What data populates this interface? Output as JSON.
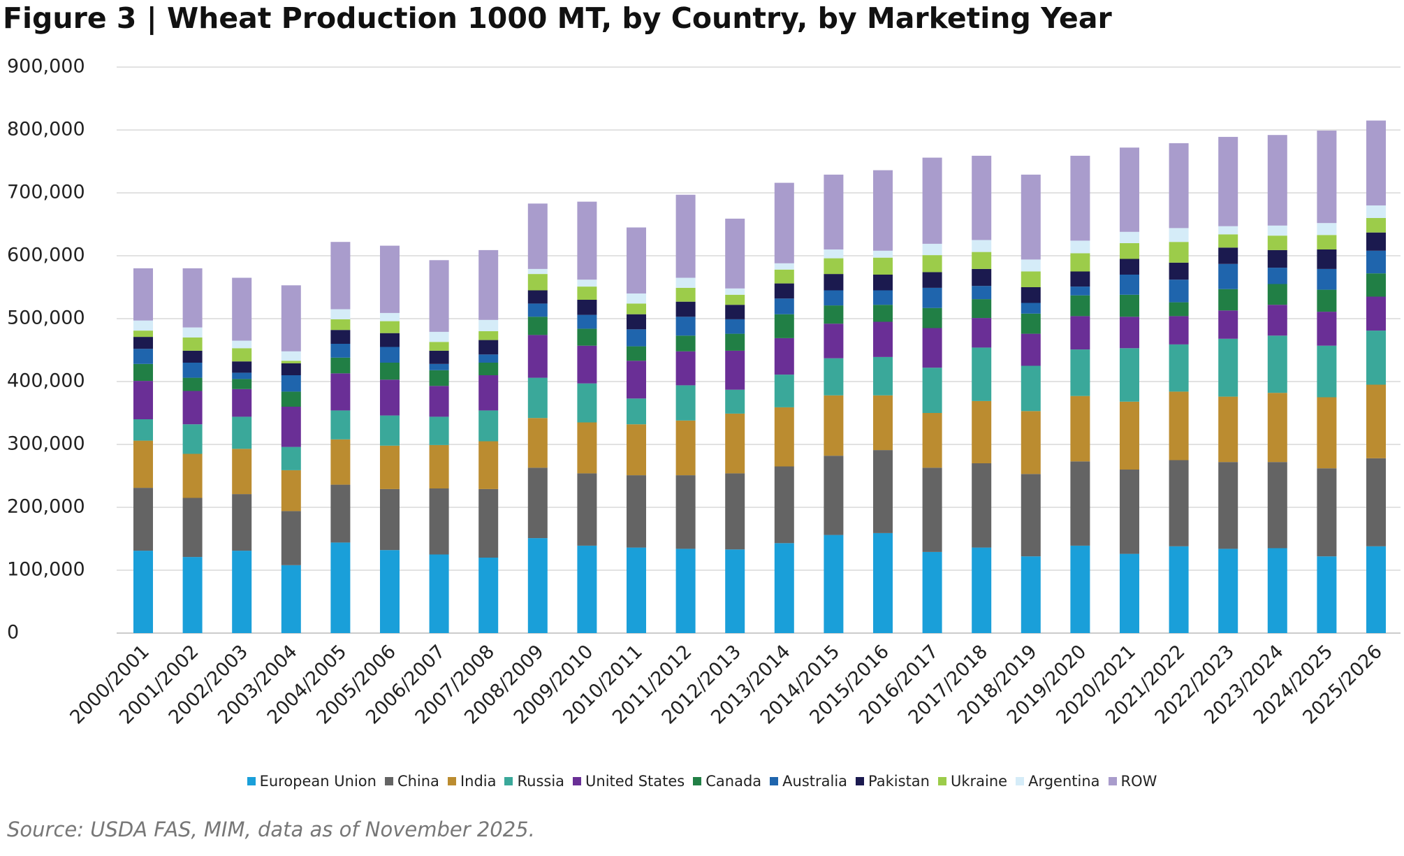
{
  "chart_data": {
    "type": "stacked_bar",
    "title": "Figure 3 | Wheat Production 1000 MT, by Country, by Marketing Year",
    "source": "Source: USDA FAS, MIM, data as of November 2025.",
    "categories": [
      "2000/2001",
      "2001/2002",
      "2002/2003",
      "2003/2004",
      "2004/2005",
      "2005/2006",
      "2006/2007",
      "2007/2008",
      "2008/2009",
      "2009/2010",
      "2010/2011",
      "2011/2012",
      "2012/2013",
      "2013/2014",
      "2014/2015",
      "2015/2016",
      "2016/2017",
      "2017/2018",
      "2018/2019",
      "2019/2020",
      "2020/2021",
      "2021/2022",
      "2022/2023",
      "2023/2024",
      "2024/2025",
      "2025/2026"
    ],
    "ylim": [
      0,
      900000
    ],
    "yticks": [
      0,
      {
        "value": 100000,
        "label": "100,000"
      },
      {
        "value": 200000,
        "label": "200,000"
      },
      {
        "value": 300000,
        "label": "300,000"
      },
      {
        "value": 400000,
        "label": "400,000"
      },
      {
        "value": 500000,
        "label": "500,000"
      },
      {
        "value": 600000,
        "label": "600,000"
      },
      {
        "value": 700000,
        "label": "700,000"
      },
      {
        "value": 800000,
        "label": "800,000"
      },
      {
        "value": 900000,
        "label": "900,000"
      }
    ],
    "grid": true,
    "legend": "bottom",
    "series": [
      {
        "name": "European Union",
        "color": "#1a9fd9",
        "values": [
          131000,
          121000,
          131000,
          108000,
          144000,
          132000,
          125000,
          120000,
          151000,
          139000,
          136000,
          134000,
          133000,
          143000,
          156000,
          159000,
          129000,
          136000,
          122000,
          139000,
          126000,
          138000,
          134000,
          135000,
          122000,
          138000
        ]
      },
      {
        "name": "China",
        "color": "#646464",
        "values": [
          100000,
          94000,
          90000,
          86000,
          92000,
          97000,
          105000,
          109000,
          112000,
          115000,
          115000,
          117000,
          121000,
          122000,
          126000,
          132000,
          134000,
          134000,
          131000,
          134000,
          134000,
          137000,
          138000,
          137000,
          140000,
          140000
        ]
      },
      {
        "name": "India",
        "color": "#bb8c30",
        "values": [
          75000,
          70000,
          72000,
          65000,
          72000,
          69000,
          69000,
          76000,
          79000,
          81000,
          81000,
          87000,
          95000,
          94000,
          96000,
          87000,
          87000,
          99000,
          100000,
          104000,
          108000,
          109000,
          104000,
          110000,
          113000,
          117000
        ]
      },
      {
        "name": "Russia",
        "color": "#3aa89a",
        "values": [
          34000,
          47000,
          51000,
          37000,
          46000,
          48000,
          45000,
          49000,
          64000,
          62000,
          41000,
          56000,
          38000,
          52000,
          59000,
          61000,
          72000,
          85000,
          72000,
          74000,
          85000,
          75000,
          92000,
          91000,
          82000,
          86000
        ]
      },
      {
        "name": "United States",
        "color": "#6a2f96",
        "values": [
          61000,
          53000,
          44000,
          64000,
          59000,
          57000,
          49000,
          56000,
          68000,
          60000,
          60000,
          54000,
          62000,
          58000,
          55000,
          56000,
          63000,
          47000,
          51000,
          53000,
          50000,
          45000,
          45000,
          49000,
          54000,
          54000
        ]
      },
      {
        "name": "Canada",
        "color": "#217f45",
        "values": [
          27000,
          21000,
          16000,
          24000,
          25000,
          27000,
          25000,
          20000,
          29000,
          27000,
          23000,
          25000,
          27000,
          38000,
          29000,
          27000,
          32000,
          30000,
          32000,
          33000,
          35000,
          22000,
          34000,
          33000,
          35000,
          37000
        ]
      },
      {
        "name": "Australia",
        "color": "#1f65ad",
        "values": [
          24000,
          24000,
          10000,
          26000,
          22000,
          25000,
          10000,
          13000,
          21000,
          22000,
          27000,
          30000,
          23000,
          25000,
          24000,
          23000,
          32000,
          21000,
          17000,
          14000,
          32000,
          36000,
          40000,
          26000,
          33000,
          36000
        ]
      },
      {
        "name": "Pakistan",
        "color": "#1b1a4f",
        "values": [
          19000,
          19000,
          18000,
          19000,
          22000,
          22000,
          21000,
          23000,
          21000,
          24000,
          24000,
          24000,
          23000,
          24000,
          26000,
          25000,
          25000,
          27000,
          25000,
          24000,
          25000,
          27000,
          26000,
          28000,
          31000,
          29000
        ]
      },
      {
        "name": "Ukraine",
        "color": "#9ccc4a",
        "values": [
          10000,
          21000,
          21000,
          4000,
          17000,
          19000,
          14000,
          14000,
          26000,
          21000,
          17000,
          22000,
          16000,
          22000,
          25000,
          27000,
          27000,
          27000,
          25000,
          29000,
          25000,
          33000,
          21000,
          23000,
          23000,
          23000
        ]
      },
      {
        "name": "Argentina",
        "color": "#d5ecf8",
        "values": [
          16000,
          16000,
          12000,
          15000,
          16000,
          13000,
          16000,
          18000,
          8000,
          11000,
          16000,
          16000,
          10000,
          10000,
          14000,
          11000,
          18000,
          19000,
          19000,
          20000,
          18000,
          22000,
          13000,
          16000,
          19000,
          20000
        ]
      },
      {
        "name": "ROW",
        "color": "#a99ccc",
        "values": [
          83000,
          94000,
          100000,
          105000,
          107000,
          107000,
          114000,
          111000,
          104000,
          124000,
          105000,
          132000,
          111000,
          128000,
          119000,
          128000,
          137000,
          134000,
          135000,
          135000,
          134000,
          135000,
          142000,
          144000,
          147000,
          135000
        ]
      }
    ]
  }
}
